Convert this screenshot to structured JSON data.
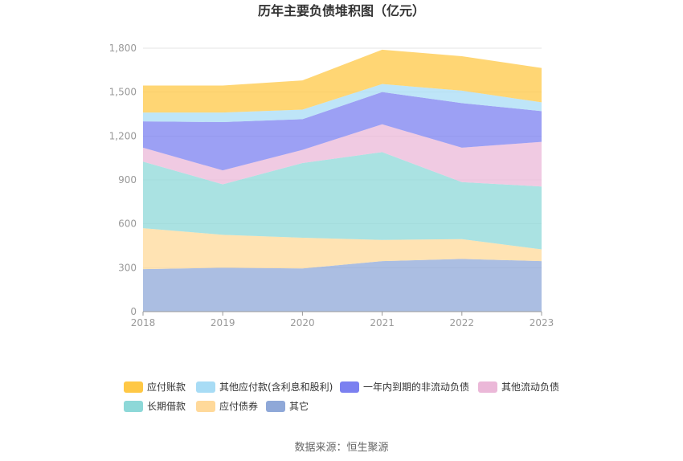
{
  "chart_data": {
    "type": "area",
    "stacked": true,
    "title": "历年主要负债堆积图（亿元）",
    "categories": [
      "2018",
      "2019",
      "2020",
      "2021",
      "2022",
      "2023"
    ],
    "ylim": [
      0,
      1800
    ],
    "yticks": [
      "0",
      "300",
      "600",
      "900",
      "1,200",
      "1,500",
      "1,800"
    ],
    "grid": true,
    "legend_position": "bottom",
    "series": [
      {
        "name": "其它",
        "color": "#8fa8d8",
        "values": [
          290,
          300,
          295,
          345,
          360,
          345
        ]
      },
      {
        "name": "应付债券",
        "color": "#ffd99a",
        "values": [
          280,
          225,
          210,
          145,
          135,
          80
        ]
      },
      {
        "name": "长期借款",
        "color": "#8dd8d8",
        "values": [
          455,
          345,
          510,
          600,
          390,
          430
        ]
      },
      {
        "name": "其他流动负债",
        "color": "#ebb8d8",
        "values": [
          95,
          95,
          90,
          190,
          235,
          305
        ]
      },
      {
        "name": "一年内到期的非流动负债",
        "color": "#7b80f0",
        "values": [
          180,
          330,
          210,
          220,
          305,
          210
        ]
      },
      {
        "name": "其他应付款(含利息和股利)",
        "color": "#a8dcf5",
        "values": [
          60,
          65,
          65,
          55,
          85,
          60
        ]
      },
      {
        "name": "应付账款",
        "color": "#ffc845",
        "values": [
          185,
          185,
          200,
          235,
          235,
          235
        ]
      }
    ],
    "legend_order": [
      "应付账款",
      "其他应付款(含利息和股利)",
      "一年内到期的非流动负债",
      "其他流动负债",
      "长期借款",
      "应付债券",
      "其它"
    ]
  },
  "source": "数据来源：恒生聚源"
}
